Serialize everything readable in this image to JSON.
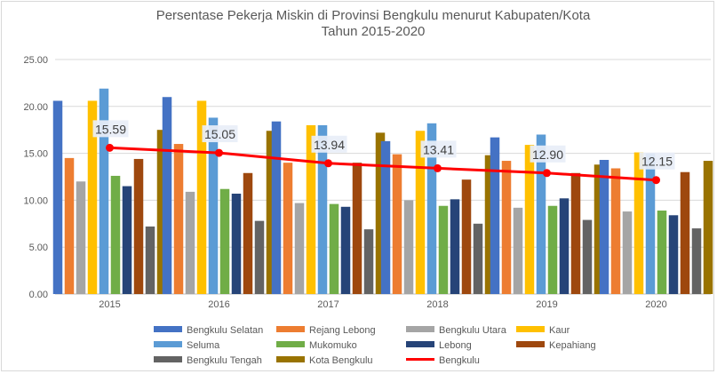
{
  "chart_data": {
    "type": "bar",
    "title": "Persentase Pekerja Miskin di Provinsi Bengkulu menurut Kabupaten/Kota",
    "subtitle": "Tahun 2015-2020",
    "xlabel": "",
    "ylabel": "",
    "ylim": [
      0,
      25
    ],
    "yticks": [
      "0.00",
      "5.00",
      "10.00",
      "15.00",
      "20.00",
      "25.00"
    ],
    "grid": true,
    "legend_position": "bottom",
    "categories": [
      "2015",
      "2016",
      "2017",
      "2018",
      "2019",
      "2020"
    ],
    "series": [
      {
        "name": "Bengkulu Selatan",
        "color": "#4472C4",
        "values": [
          20.6,
          21.0,
          18.4,
          16.3,
          16.7,
          14.3
        ]
      },
      {
        "name": "Rejang Lebong",
        "color": "#ED7D31",
        "values": [
          14.5,
          16.0,
          14.0,
          14.9,
          14.2,
          13.4
        ]
      },
      {
        "name": "Bengkulu Utara",
        "color": "#A5A5A5",
        "values": [
          12.0,
          10.9,
          9.7,
          10.0,
          9.2,
          8.8
        ]
      },
      {
        "name": "Kaur",
        "color": "#FFC000",
        "values": [
          20.6,
          20.6,
          18.0,
          17.4,
          15.9,
          15.1
        ]
      },
      {
        "name": "Seluma",
        "color": "#5B9BD5",
        "values": [
          21.9,
          18.8,
          18.0,
          18.2,
          17.0,
          15.0
        ]
      },
      {
        "name": "Mukomuko",
        "color": "#70AD47",
        "values": [
          12.6,
          11.2,
          9.6,
          9.4,
          9.4,
          8.9
        ]
      },
      {
        "name": "Lebong",
        "color": "#264478",
        "values": [
          11.5,
          10.7,
          9.3,
          10.1,
          10.2,
          8.4
        ]
      },
      {
        "name": "Kepahiang",
        "color": "#9E480E",
        "values": [
          14.4,
          12.9,
          14.0,
          12.2,
          12.9,
          13.0
        ]
      },
      {
        "name": "Bengkulu Tengah",
        "color": "#636363",
        "values": [
          7.2,
          7.8,
          6.9,
          7.5,
          7.9,
          7.0
        ]
      },
      {
        "name": "Kota Bengkulu",
        "color": "#997300",
        "values": [
          17.5,
          17.4,
          17.2,
          14.8,
          13.8,
          14.2
        ]
      }
    ],
    "line": {
      "name": "Bengkulu",
      "color": "#FF0000",
      "values": [
        15.59,
        15.05,
        13.94,
        13.41,
        12.9,
        12.15
      ]
    },
    "data_labels": [
      "15.59",
      "15.05",
      "13.94",
      "13.41",
      "12.90",
      "12.15"
    ]
  }
}
